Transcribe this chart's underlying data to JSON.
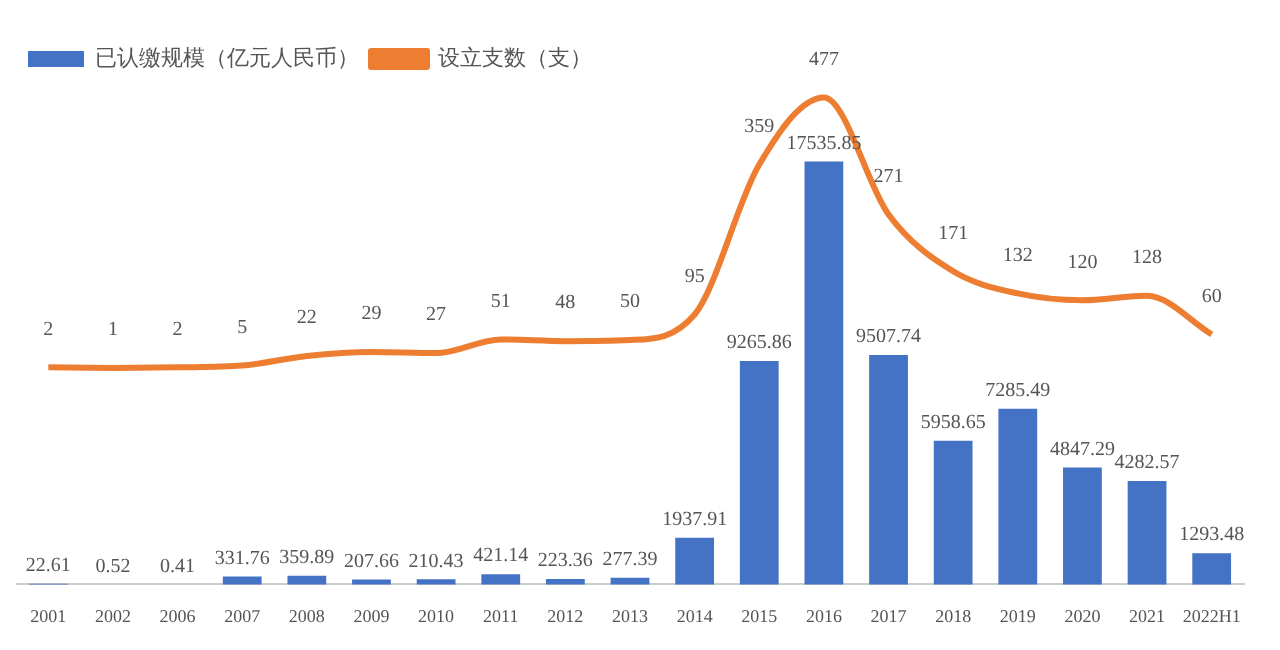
{
  "chart_data": {
    "type": "bar",
    "categories": [
      "2001",
      "2002",
      "2006",
      "2007",
      "2008",
      "2009",
      "2010",
      "2011",
      "2012",
      "2013",
      "2014",
      "2015",
      "2016",
      "2017",
      "2018",
      "2019",
      "2020",
      "2021",
      "2022H1"
    ],
    "series": [
      {
        "name": "已认缴规模（亿元人民币）",
        "color": "#4472c4",
        "values": [
          22.61,
          0.52,
          0.41,
          331.76,
          359.89,
          207.66,
          210.43,
          421.14,
          223.36,
          277.39,
          1937.91,
          9265.86,
          17535.85,
          9507.74,
          5958.65,
          7285.49,
          4847.29,
          4282.57,
          1293.48
        ]
      },
      {
        "name": "设立支数（支）",
        "type": "line",
        "axis": "y2",
        "color": "#ed7d31",
        "values": [
          2,
          1,
          2,
          5,
          22,
          29,
          27,
          51,
          48,
          50,
          95,
          359,
          477,
          271,
          171,
          132,
          120,
          128,
          60
        ]
      }
    ],
    "data_labels": true,
    "legend": "top left",
    "grid": false,
    "tick_labels": "x",
    "marker": "none"
  }
}
